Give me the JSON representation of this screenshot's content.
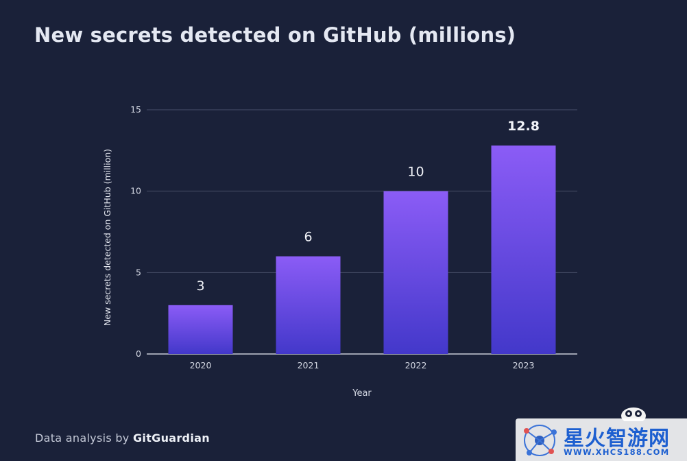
{
  "title": "New secrets detected on GitHub (millions)",
  "footer": {
    "prefix": "Data analysis by",
    "brand": "GitGuardian"
  },
  "watermark": {
    "title": "星火智游网",
    "url": "WWW.XHCS188.COM"
  },
  "colors": {
    "background": "#1a2139",
    "bar_top": "#8b5cf6",
    "bar_bottom": "#4338ca",
    "grid": "#48506a",
    "text": "#e8ebf3"
  },
  "chart_data": {
    "type": "bar",
    "title": "",
    "xlabel": "Year",
    "ylabel": "New secrets detected on GitHub (million)",
    "categories": [
      "2020",
      "2021",
      "2022",
      "2023"
    ],
    "values": [
      3,
      6,
      10,
      12.8
    ],
    "data_labels": [
      "3",
      "6",
      "10",
      "12.8"
    ],
    "yticks": [
      0,
      5,
      10,
      15
    ],
    "ylim": [
      0,
      15
    ],
    "grid": true,
    "legend": "none"
  }
}
